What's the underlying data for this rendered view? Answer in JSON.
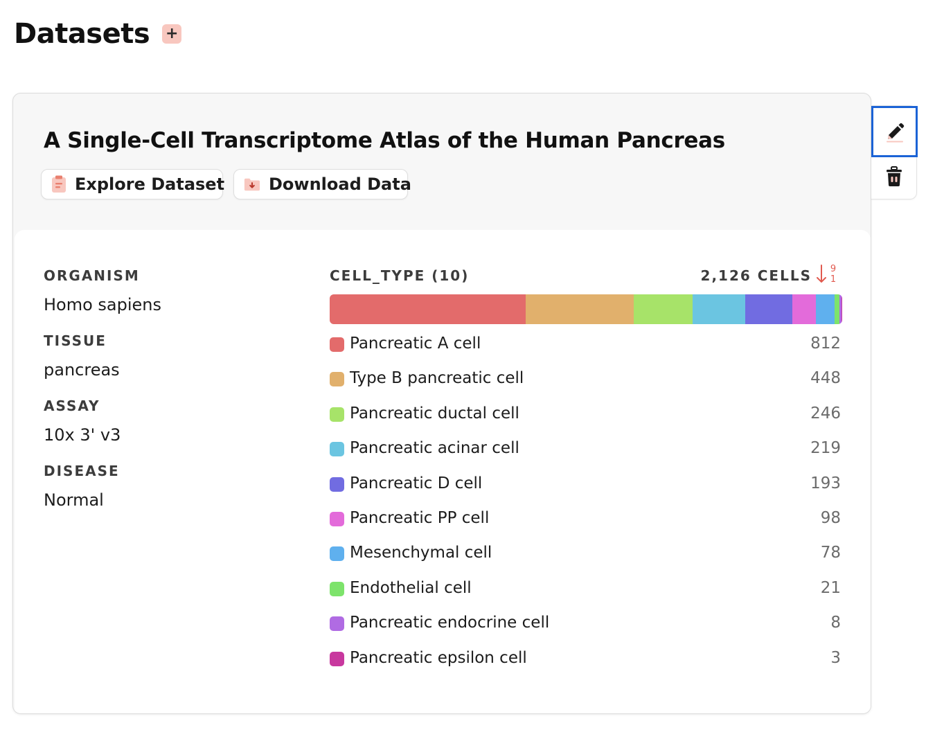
{
  "page": {
    "title": "Datasets",
    "add_label": "+"
  },
  "dataset": {
    "title": "A Single-Cell Transcriptome Atlas of the Human Pancreas",
    "explore_label": "Explore Dataset",
    "download_label": "Download Data",
    "metadata": [
      {
        "label": "ORGANISM",
        "value": "Homo sapiens"
      },
      {
        "label": "TISSUE",
        "value": "pancreas"
      },
      {
        "label": "ASSAY",
        "value": "10x 3' v3"
      },
      {
        "label": "DISEASE",
        "value": "Normal"
      }
    ]
  },
  "cell_types": {
    "label": "CELL_TYPE (10)",
    "total_label": "2,126 CELLS",
    "sort_top": "9",
    "sort_bottom": "1",
    "items": [
      {
        "name": "Pancreatic A cell",
        "count": 812,
        "color": "#e36b6b"
      },
      {
        "name": "Type B pancreatic cell",
        "count": 448,
        "color": "#e1b06c"
      },
      {
        "name": "Pancreatic ductal cell",
        "count": 246,
        "color": "#a7e369"
      },
      {
        "name": "Pancreatic acinar cell",
        "count": 219,
        "color": "#6bc5e1"
      },
      {
        "name": "Pancreatic D cell",
        "count": 193,
        "color": "#716ce1"
      },
      {
        "name": "Pancreatic PP cell",
        "count": 98,
        "color": "#e36bda"
      },
      {
        "name": "Mesenchymal cell",
        "count": 78,
        "color": "#5fb0ee"
      },
      {
        "name": "Endothelial cell",
        "count": 21,
        "color": "#7de36b"
      },
      {
        "name": "Pancreatic endocrine cell",
        "count": 8,
        "color": "#b06be3"
      },
      {
        "name": "Pancreatic epsilon cell",
        "count": 3,
        "color": "#c8389e"
      }
    ]
  },
  "colors": {
    "accent": "#f8c7bf",
    "accent_icon": "#e9806f",
    "focus": "#1b63d6",
    "sort_arrow": "#e15a4f"
  },
  "icons": {
    "add": "plus-icon",
    "explore": "clipboard-icon",
    "download": "folder-download-icon",
    "edit": "pencil-icon",
    "delete": "trash-icon",
    "sort": "sort-descending-icon"
  }
}
